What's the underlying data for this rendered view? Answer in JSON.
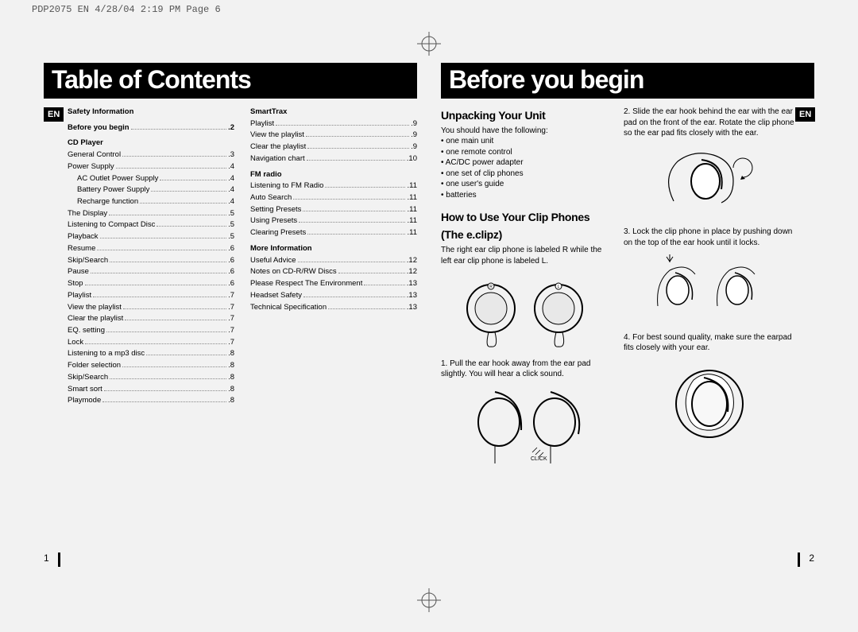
{
  "header": "PDP2075 EN  4/28/04  2:19 PM  Page 6",
  "left": {
    "title": "Table of Contents",
    "lang": "EN",
    "pageNum": "1",
    "col1": {
      "s1": {
        "label": "Safety Information"
      },
      "s2": {
        "label": "Before you begin",
        "page": ".2"
      },
      "s3": {
        "label": "CD Player"
      },
      "items": [
        {
          "label": "General Control",
          "page": ".3",
          "sub": false
        },
        {
          "label": "Power Supply",
          "page": ".4",
          "sub": false
        },
        {
          "label": "AC Outlet Power Supply",
          "page": ".4",
          "sub": true
        },
        {
          "label": "Battery Power Supply",
          "page": ".4",
          "sub": true
        },
        {
          "label": "Recharge function",
          "page": ".4",
          "sub": true
        },
        {
          "label": "The Display",
          "page": ".5",
          "sub": false
        },
        {
          "label": "Listening to Compact Disc",
          "page": ".5",
          "sub": false
        },
        {
          "label": "Playback",
          "page": ".5",
          "sub": false
        },
        {
          "label": "Resume",
          "page": ".6",
          "sub": false
        },
        {
          "label": "Skip/Search",
          "page": ".6",
          "sub": false
        },
        {
          "label": "Pause",
          "page": ".6",
          "sub": false
        },
        {
          "label": "Stop",
          "page": ".6",
          "sub": false
        },
        {
          "label": "Playlist",
          "page": ".7",
          "sub": false
        },
        {
          "label": "View the playlist",
          "page": ".7",
          "sub": false
        },
        {
          "label": "Clear the playlist",
          "page": ".7",
          "sub": false
        },
        {
          "label": "EQ. setting",
          "page": ".7",
          "sub": false
        },
        {
          "label": "Lock",
          "page": ".7",
          "sub": false
        },
        {
          "label": "Listening to a mp3 disc",
          "page": ".8",
          "sub": false
        },
        {
          "label": "Folder selection",
          "page": ".8",
          "sub": false
        },
        {
          "label": "Skip/Search",
          "page": ".8",
          "sub": false
        },
        {
          "label": "Smart sort",
          "page": ".8",
          "sub": false
        },
        {
          "label": "Playmode",
          "page": ".8",
          "sub": false
        }
      ]
    },
    "col2": {
      "s1": {
        "label": "SmartTrax"
      },
      "g1": [
        {
          "label": "Playlist",
          "page": ".9"
        },
        {
          "label": "View the playlist",
          "page": ".9"
        },
        {
          "label": "Clear the playlist",
          "page": ".9"
        },
        {
          "label": "Navigation chart",
          "page": ".10"
        }
      ],
      "s2": {
        "label": "FM radio"
      },
      "g2": [
        {
          "label": "Listening to FM Radio",
          "page": ".11"
        },
        {
          "label": "Auto Search",
          "page": ".11"
        },
        {
          "label": "Setting Presets",
          "page": ".11"
        },
        {
          "label": "Using Presets",
          "page": ".11"
        },
        {
          "label": "Clearing Presets",
          "page": ".11"
        }
      ],
      "s3": {
        "label": "More Information"
      },
      "g3": [
        {
          "label": "Useful Advice",
          "page": ".12"
        },
        {
          "label": "Notes on CD-R/RW Discs",
          "page": ".12"
        },
        {
          "label": "Please Respect The Environment",
          "page": ".13"
        },
        {
          "label": "Headset Safety",
          "page": ".13"
        },
        {
          "label": "Technical Specification",
          "page": ".13"
        }
      ]
    }
  },
  "right": {
    "title": "Before you begin",
    "lang": "EN",
    "pageNum": "2",
    "colL": {
      "h1": "Unpacking Your Unit",
      "intro": "You should have the following:",
      "bullets": [
        "one main unit",
        "one remote control",
        "AC/DC power adapter",
        "one set of clip phones",
        "one user's guide",
        "batteries"
      ],
      "h2a": "How to Use Your Clip Phones",
      "h2b": "(The e.clipz)",
      "p2": "The right ear clip phone is labeled R while the left ear clip phone is labeled L.",
      "p3": "1. Pull the ear hook away from the ear pad slightly. You will hear a click sound."
    },
    "colR": {
      "p1": "2. Slide the ear hook behind the ear with the ear pad on the front of the ear. Rotate the clip phone so the ear pad fits closely with the ear.",
      "p2": "3. Lock the clip phone in place by pushing down on the top of the ear hook until it locks.",
      "p3": "4. For best sound quality, make sure the earpad fits closely with your ear."
    }
  }
}
